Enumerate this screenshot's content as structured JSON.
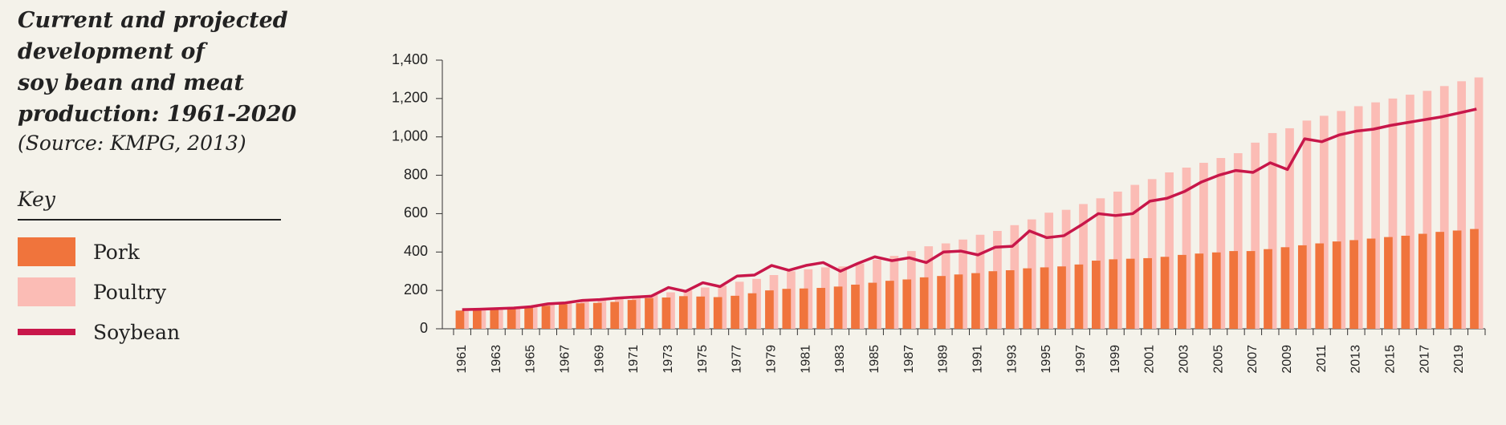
{
  "chart_data": {
    "type": "bar",
    "title": "Current and projected\ndevelopment of\nsoy bean and meat\nproduction: 1961-2020",
    "subtitle": "(Source: KMPG, 2013)",
    "legend_title": "Key",
    "categories": [
      "1961",
      null,
      "1963",
      null,
      "1965",
      null,
      "1967",
      null,
      "1969",
      null,
      "1971",
      null,
      "1973",
      null,
      "1975",
      null,
      "1977",
      null,
      "1979",
      null,
      "1981",
      null,
      "1983",
      null,
      "1985",
      null,
      "1987",
      null,
      "1989",
      null,
      "1991",
      null,
      "1993",
      null,
      "1995",
      null,
      "1997",
      null,
      "1999",
      null,
      "2001",
      null,
      "2003",
      null,
      "2005",
      null,
      "2007",
      null,
      "2009",
      null,
      "2011",
      null,
      "2013",
      null,
      "2015",
      null,
      "2017",
      null,
      "2019",
      null
    ],
    "series": [
      {
        "name": "Pork",
        "color": "#f0743c",
        "type": "bar",
        "values": [
          95,
          97,
          100,
          103,
          110,
          120,
          128,
          133,
          135,
          140,
          150,
          160,
          163,
          170,
          168,
          165,
          172,
          185,
          200,
          208,
          210,
          213,
          220,
          230,
          240,
          250,
          257,
          268,
          275,
          283,
          290,
          300,
          305,
          315,
          320,
          325,
          335,
          355,
          362,
          365,
          368,
          375,
          385,
          392,
          398,
          405,
          405,
          415,
          425,
          435,
          445,
          455,
          462,
          470,
          478,
          485,
          495,
          505,
          512,
          520
        ]
      },
      {
        "name": "Poultry",
        "color": "#fbbcb5",
        "type": "bar",
        "values": [
          95,
          100,
          105,
          110,
          118,
          127,
          135,
          145,
          152,
          160,
          168,
          178,
          190,
          200,
          215,
          225,
          245,
          260,
          280,
          300,
          310,
          320,
          325,
          340,
          360,
          380,
          405,
          430,
          445,
          465,
          490,
          510,
          540,
          570,
          605,
          620,
          650,
          680,
          715,
          750,
          780,
          815,
          840,
          865,
          890,
          915,
          970,
          1020,
          1045,
          1085,
          1110,
          1135,
          1160,
          1180,
          1200,
          1220,
          1240,
          1265,
          1290,
          1310
        ]
      },
      {
        "name": "Soybean",
        "color": "#c8174a",
        "type": "line",
        "values": [
          100,
          102,
          105,
          108,
          115,
          130,
          135,
          148,
          152,
          160,
          165,
          170,
          215,
          195,
          240,
          220,
          275,
          280,
          330,
          305,
          330,
          345,
          300,
          340,
          375,
          355,
          370,
          345,
          400,
          405,
          385,
          425,
          430,
          510,
          475,
          485,
          540,
          600,
          590,
          600,
          665,
          680,
          715,
          765,
          800,
          825,
          815,
          865,
          830,
          990,
          975,
          1010,
          1030,
          1040,
          1060,
          1075,
          1090,
          1105,
          1125,
          1145
        ]
      }
    ],
    "ylim": [
      0,
      1400
    ],
    "yticks": [
      0,
      200,
      400,
      600,
      800,
      {
        "value": 1000,
        "label": "1,000"
      },
      {
        "value": 1200,
        "label": "1,200"
      },
      {
        "value": 1400,
        "label": "1,400"
      }
    ]
  }
}
